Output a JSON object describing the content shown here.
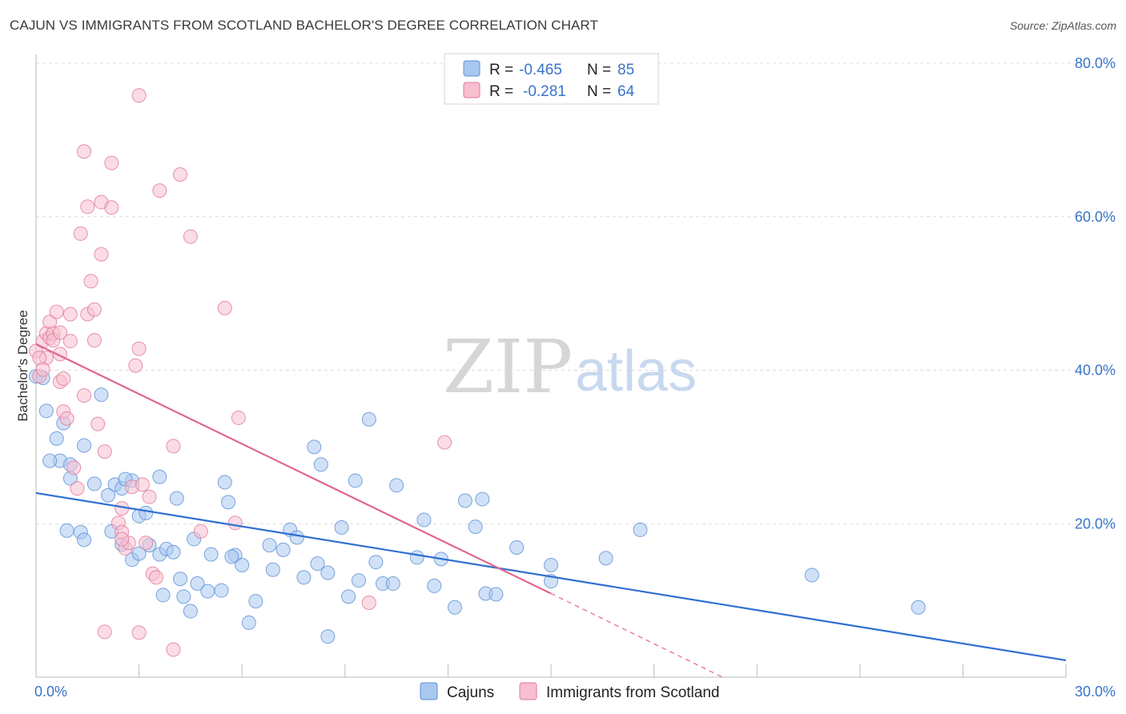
{
  "title": "CAJUN VS IMMIGRANTS FROM SCOTLAND BACHELOR'S DEGREE CORRELATION CHART",
  "source": "Source: ZipAtlas.com",
  "watermark": {
    "zip": "ZIP",
    "atlas": "atlas"
  },
  "legend": {
    "rows": [
      {
        "r_label": "R =",
        "r_value": "-0.465",
        "n_label": "N =",
        "n_value": "85",
        "color": "#a9c8f0",
        "stroke": "#5b8fd6"
      },
      {
        "r_label": "R =",
        "r_value": "-0.281",
        "n_label": "N =",
        "n_value": "64",
        "color": "#f8bfd0",
        "stroke": "#e07898"
      }
    ]
  },
  "bottom_legend": [
    {
      "label": "Cajuns",
      "color": "#a9c8f0"
    },
    {
      "label": "Immigrants from Scotland",
      "color": "#f8bfd0"
    }
  ],
  "chart_data": {
    "type": "scatter",
    "title": "CAJUN VS IMMIGRANTS FROM SCOTLAND BACHELOR'S DEGREE CORRELATION CHART",
    "xlabel": "",
    "ylabel": "Bachelor's Degree",
    "xlim": [
      0,
      30
    ],
    "ylim": [
      0,
      80
    ],
    "x_tick_labels": [
      "0.0%",
      "30.0%"
    ],
    "y_tick_labels": [
      "20.0%",
      "40.0%",
      "60.0%",
      "80.0%"
    ],
    "y_ticks": [
      20,
      40,
      60,
      80
    ],
    "grid": true,
    "series": [
      {
        "name": "Cajuns",
        "color": "#a9c8f0",
        "stroke": "#5b8fd6",
        "trend": {
          "x": [
            0,
            30
          ],
          "y": [
            24.0,
            2.2
          ],
          "color": "#2f6fd0"
        },
        "points": [
          [
            0.0,
            39.2
          ],
          [
            0.3,
            34.7
          ],
          [
            0.6,
            31.1
          ],
          [
            0.7,
            28.2
          ],
          [
            0.4,
            28.2
          ],
          [
            1.0,
            27.7
          ],
          [
            0.8,
            33.1
          ],
          [
            1.4,
            30.2
          ],
          [
            1.9,
            36.8
          ],
          [
            1.0,
            25.9
          ],
          [
            1.7,
            25.2
          ],
          [
            2.1,
            23.7
          ],
          [
            2.3,
            25.1
          ],
          [
            1.3,
            18.9
          ],
          [
            2.5,
            24.6
          ],
          [
            2.8,
            25.6
          ],
          [
            3.0,
            21.0
          ],
          [
            3.2,
            21.4
          ],
          [
            3.6,
            26.1
          ],
          [
            2.2,
            19.0
          ],
          [
            2.5,
            17.3
          ],
          [
            2.8,
            15.3
          ],
          [
            3.0,
            16.1
          ],
          [
            3.3,
            17.2
          ],
          [
            3.6,
            16.0
          ],
          [
            3.8,
            16.7
          ],
          [
            4.0,
            16.3
          ],
          [
            4.1,
            23.3
          ],
          [
            4.2,
            12.8
          ],
          [
            3.7,
            10.7
          ],
          [
            4.3,
            10.5
          ],
          [
            4.5,
            8.6
          ],
          [
            4.6,
            18.0
          ],
          [
            4.7,
            12.2
          ],
          [
            5.0,
            11.2
          ],
          [
            5.1,
            16.0
          ],
          [
            5.4,
            11.3
          ],
          [
            5.5,
            25.4
          ],
          [
            5.6,
            22.8
          ],
          [
            5.8,
            15.9
          ],
          [
            5.7,
            15.7
          ],
          [
            6.0,
            14.6
          ],
          [
            6.2,
            7.1
          ],
          [
            6.4,
            9.9
          ],
          [
            6.8,
            17.2
          ],
          [
            6.9,
            14.0
          ],
          [
            7.2,
            16.6
          ],
          [
            7.4,
            19.2
          ],
          [
            7.6,
            18.2
          ],
          [
            7.8,
            13.0
          ],
          [
            8.1,
            30.0
          ],
          [
            8.2,
            14.8
          ],
          [
            8.3,
            27.7
          ],
          [
            8.5,
            13.6
          ],
          [
            8.5,
            5.3
          ],
          [
            8.9,
            19.5
          ],
          [
            9.1,
            10.5
          ],
          [
            9.3,
            25.6
          ],
          [
            9.4,
            12.6
          ],
          [
            9.7,
            33.6
          ],
          [
            9.9,
            15.0
          ],
          [
            10.1,
            12.2
          ],
          [
            10.5,
            25.0
          ],
          [
            10.4,
            12.2
          ],
          [
            11.1,
            15.6
          ],
          [
            11.3,
            20.5
          ],
          [
            11.6,
            11.9
          ],
          [
            11.8,
            15.4
          ],
          [
            12.2,
            9.1
          ],
          [
            12.5,
            23.0
          ],
          [
            12.8,
            19.6
          ],
          [
            13.0,
            23.2
          ],
          [
            13.1,
            10.9
          ],
          [
            13.4,
            10.8
          ],
          [
            14.0,
            16.9
          ],
          [
            15.0,
            12.5
          ],
          [
            15.0,
            14.6
          ],
          [
            16.6,
            15.5
          ],
          [
            17.6,
            19.2
          ],
          [
            22.6,
            13.3
          ],
          [
            25.7,
            9.1
          ],
          [
            2.6,
            25.8
          ],
          [
            1.4,
            17.9
          ],
          [
            0.9,
            19.1
          ],
          [
            0.2,
            39.0
          ]
        ]
      },
      {
        "name": "Immigrants from Scotland",
        "color": "#f8bfd0",
        "stroke": "#e07898",
        "trend": {
          "x": [
            0,
            15.0
          ],
          "y": [
            43.4,
            10.9
          ],
          "color": "#e0668e",
          "dashed_to": [
            20.0,
            0.0
          ]
        },
        "points": [
          [
            0.0,
            42.5
          ],
          [
            0.1,
            39.2
          ],
          [
            0.2,
            43.8
          ],
          [
            0.3,
            44.8
          ],
          [
            0.3,
            41.6
          ],
          [
            0.4,
            46.3
          ],
          [
            0.4,
            44.2
          ],
          [
            0.5,
            44.8
          ],
          [
            0.6,
            47.6
          ],
          [
            0.7,
            42.1
          ],
          [
            0.7,
            38.5
          ],
          [
            0.8,
            38.9
          ],
          [
            0.8,
            34.6
          ],
          [
            0.9,
            33.7
          ],
          [
            1.0,
            43.8
          ],
          [
            1.0,
            47.3
          ],
          [
            1.1,
            27.3
          ],
          [
            1.2,
            24.6
          ],
          [
            1.3,
            57.8
          ],
          [
            1.4,
            68.5
          ],
          [
            1.4,
            36.7
          ],
          [
            1.5,
            47.3
          ],
          [
            1.6,
            51.6
          ],
          [
            1.7,
            47.9
          ],
          [
            1.7,
            43.9
          ],
          [
            1.8,
            33.0
          ],
          [
            1.9,
            55.1
          ],
          [
            1.9,
            61.9
          ],
          [
            2.0,
            29.4
          ],
          [
            2.2,
            61.2
          ],
          [
            2.2,
            67.0
          ],
          [
            2.4,
            20.1
          ],
          [
            2.5,
            18.9
          ],
          [
            2.5,
            22.0
          ],
          [
            2.6,
            16.8
          ],
          [
            2.7,
            17.5
          ],
          [
            2.8,
            24.8
          ],
          [
            2.9,
            40.6
          ],
          [
            3.0,
            42.8
          ],
          [
            3.0,
            75.8
          ],
          [
            3.1,
            25.1
          ],
          [
            3.2,
            17.5
          ],
          [
            3.3,
            23.5
          ],
          [
            3.4,
            13.5
          ],
          [
            3.5,
            13.0
          ],
          [
            3.6,
            63.4
          ],
          [
            4.0,
            3.6
          ],
          [
            4.0,
            30.1
          ],
          [
            4.2,
            65.5
          ],
          [
            4.5,
            57.4
          ],
          [
            4.8,
            19.0
          ],
          [
            5.5,
            48.1
          ],
          [
            5.8,
            20.1
          ],
          [
            5.9,
            33.8
          ],
          [
            9.7,
            9.7
          ],
          [
            11.9,
            30.6
          ],
          [
            0.1,
            41.6
          ],
          [
            0.2,
            40.1
          ],
          [
            0.5,
            43.9
          ],
          [
            0.7,
            44.9
          ],
          [
            1.5,
            61.3
          ],
          [
            2.0,
            5.9
          ],
          [
            2.5,
            18.0
          ],
          [
            3.0,
            5.8
          ]
        ]
      }
    ]
  }
}
